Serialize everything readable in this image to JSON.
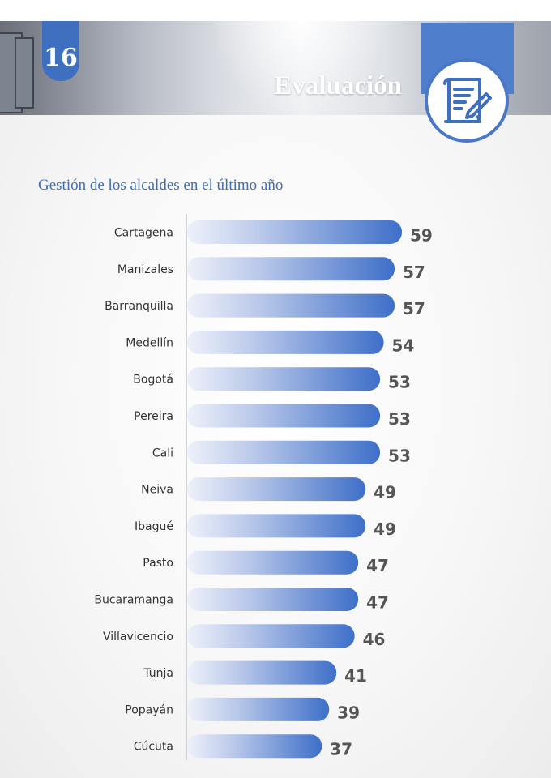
{
  "header": {
    "page_number": "16",
    "section_title": "Evaluación",
    "icon": "document-pen-icon"
  },
  "colors": {
    "accent": "#3f6fbf",
    "bar_start": "#eef1fa",
    "bar_end": "#3e6fc8",
    "value_text": "#555555",
    "title": "#3e6db5"
  },
  "chart_data": {
    "type": "bar",
    "orientation": "horizontal",
    "title": "Gestión de los alcaldes en el último año",
    "categories": [
      "Cartagena",
      "Manizales",
      "Barranquilla",
      "Medellín",
      "Bogotá",
      "Pereira",
      "Cali",
      "Neiva",
      "Ibagué",
      "Pasto",
      "Bucaramanga",
      "Villavicencio",
      "Tunja",
      "Popayán",
      "Cúcuta"
    ],
    "values": [
      59,
      57,
      57,
      54,
      53,
      53,
      53,
      49,
      49,
      47,
      47,
      46,
      41,
      39,
      37
    ],
    "xlim": [
      0,
      59
    ],
    "grid": false,
    "legend": "none"
  }
}
